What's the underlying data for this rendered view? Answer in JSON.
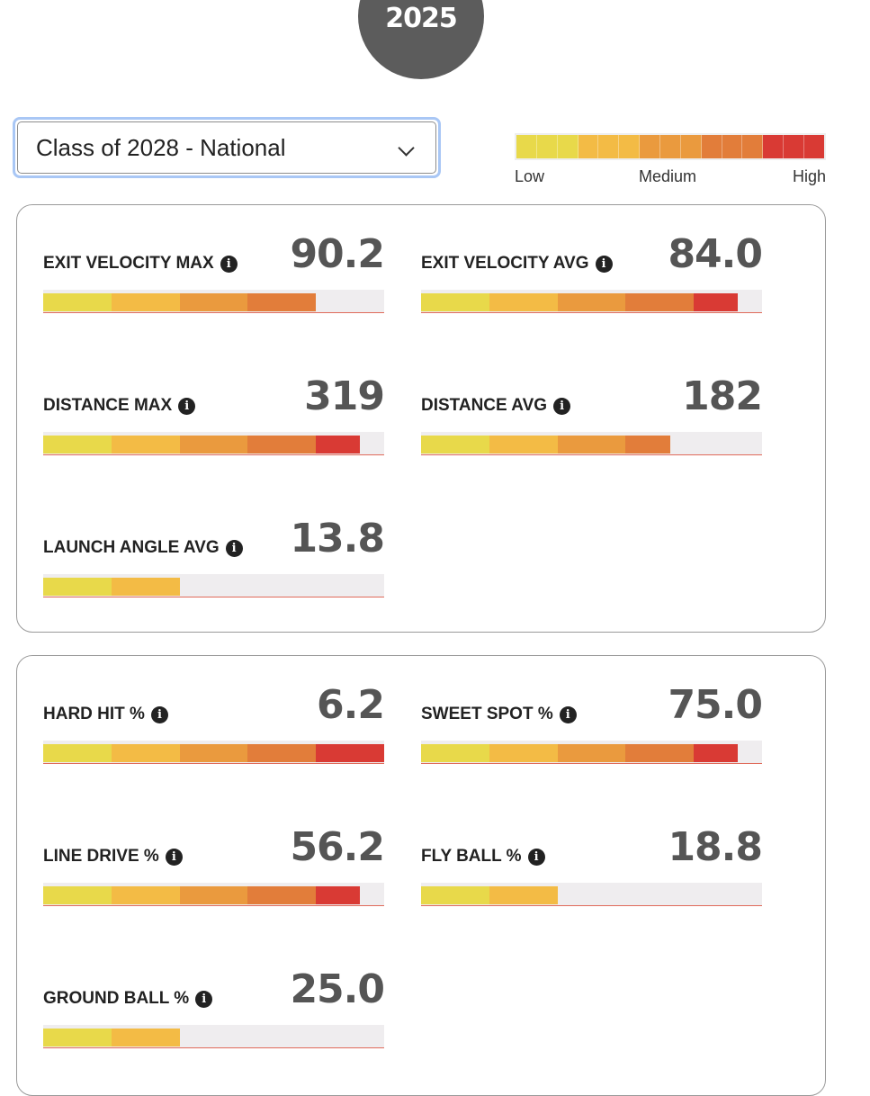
{
  "header": {
    "year": "2025"
  },
  "filter": {
    "selected": "Class of 2028 - National"
  },
  "legend": {
    "low": "Low",
    "medium": "Medium",
    "high": "High",
    "colors": [
      "#e8d94a",
      "#e8d94a",
      "#e8d94a",
      "#f3bb45",
      "#f3bb45",
      "#f3bb45",
      "#ea9a3e",
      "#ea9a3e",
      "#ea9a3e",
      "#e27d3a",
      "#e27d3a",
      "#e27d3a",
      "#d93a34",
      "#d93a34",
      "#d93a34"
    ]
  },
  "segment_colors": [
    "#e8d94a",
    "#f3bb45",
    "#ea9a3e",
    "#e27d3a",
    "#d93a34"
  ],
  "cards": [
    {
      "metrics": [
        {
          "label": "EXIT VELOCITY MAX",
          "value": "90.2",
          "fill_fraction": 0.8
        },
        {
          "label": "EXIT VELOCITY AVG",
          "value": "84.0",
          "fill_fraction": 0.93
        },
        {
          "label": "DISTANCE MAX",
          "value": "319",
          "fill_fraction": 0.93
        },
        {
          "label": "DISTANCE AVG",
          "value": "182",
          "fill_fraction": 0.73
        },
        {
          "label": "LAUNCH ANGLE AVG",
          "value": "13.8",
          "fill_fraction": 0.4
        }
      ]
    },
    {
      "metrics": [
        {
          "label": "HARD HIT %",
          "value": "6.2",
          "fill_fraction": 1.0
        },
        {
          "label": "SWEET SPOT %",
          "value": "75.0",
          "fill_fraction": 0.93
        },
        {
          "label": "LINE DRIVE %",
          "value": "56.2",
          "fill_fraction": 0.93
        },
        {
          "label": "FLY BALL %",
          "value": "18.8",
          "fill_fraction": 0.4
        },
        {
          "label": "GROUND BALL %",
          "value": "25.0",
          "fill_fraction": 0.4
        }
      ]
    }
  ]
}
